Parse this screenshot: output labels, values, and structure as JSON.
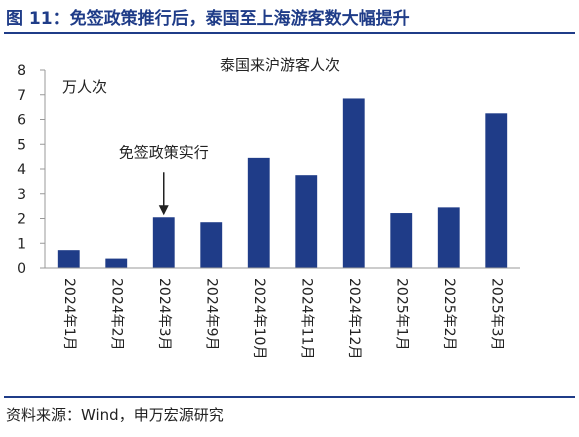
{
  "figure_title": "图 11：免签政策推行后，泰国至上海游客数大幅提升",
  "source_note": "资料来源：Wind，申万宏源研究",
  "chart_data": {
    "type": "bar",
    "title": "泰国来沪游客人次",
    "unit_label": "万人次",
    "categories": [
      "2024年1月",
      "2024年2月",
      "2024年3月",
      "2024年9月",
      "2024年10月",
      "2024年11月",
      "2024年12月",
      "2025年1月",
      "2025年2月",
      "2025年3月"
    ],
    "values": [
      0.72,
      0.38,
      2.05,
      1.85,
      4.45,
      3.75,
      6.85,
      2.22,
      2.45,
      6.25
    ],
    "ylim": [
      0,
      8
    ],
    "yticks": [
      0,
      1,
      2,
      3,
      4,
      5,
      6,
      7,
      8
    ],
    "grid": false,
    "annotation": {
      "text": "免签政策实行",
      "category_index": 2
    },
    "colors": {
      "bar": "#1f3c88"
    }
  }
}
